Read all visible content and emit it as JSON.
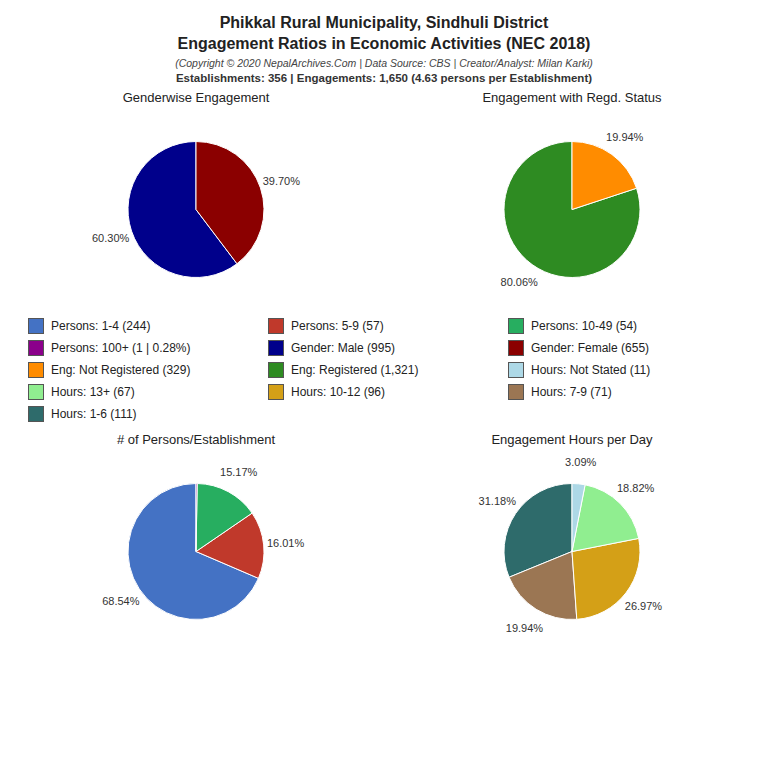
{
  "title": [
    "Phikkal Rural Municipality, Sindhuli District",
    "Engagement Ratios in Economic Activities (NEC 2018)"
  ],
  "subtitle": "(Copyright © 2020 NepalArchives.Com | Data Source: CBS | Creator/Analyst: Milan Karki)",
  "annotations": [
    "Establishments: 356 | Engagements: 1,650 (4.63 persons per Establishment)"
  ],
  "chart_data": [
    {
      "type": "pie",
      "title": "Genderwise Engagement",
      "categories": [
        "Gender: Male (995)",
        "Gender: Female (655)"
      ],
      "values": [
        60.3,
        39.7
      ],
      "value_labels": [
        "60.30%",
        "39.70%"
      ],
      "colors": [
        "#00008B",
        "#8B0000"
      ],
      "data_labels": true
    },
    {
      "type": "pie",
      "title": "Engagement with Regd. Status",
      "categories": [
        "Eng: Registered (1,321)",
        "Eng: Not Registered (329)"
      ],
      "values": [
        80.06,
        19.94
      ],
      "value_labels": [
        "80.06%",
        "19.94%"
      ],
      "colors": [
        "#2E8B22",
        "#FF8C00"
      ],
      "data_labels": true
    },
    {
      "type": "pie",
      "title": "# of Persons/Establishment",
      "categories": [
        "Persons: 1-4 (244)",
        "Persons: 5-9 (57)",
        "Persons: 10-49 (54)",
        "Persons: 100+ (1 | 0.28%)"
      ],
      "values": [
        68.54,
        16.01,
        15.17,
        0.28
      ],
      "value_labels": [
        "68.54%",
        "16.01%",
        "15.17%",
        null
      ],
      "colors": [
        "#4472C4",
        "#C0392B",
        "#27AE60",
        "#8B008B"
      ],
      "data_labels": true
    },
    {
      "type": "pie",
      "title": "Engagement Hours per Day",
      "categories": [
        "Hours: 1-6 (111)",
        "Hours: 7-9 (71)",
        "Hours: 10-12 (96)",
        "Hours: 13+ (67)",
        "Hours: Not Stated (11)"
      ],
      "values": [
        31.18,
        19.94,
        26.97,
        18.82,
        3.09
      ],
      "value_labels": [
        "31.18%",
        "19.94%",
        "26.97%",
        "18.82%",
        "3.09%"
      ],
      "colors": [
        "#2E6B6B",
        "#9B7653",
        "#D4A017",
        "#90EE90",
        "#ADD8E6"
      ],
      "data_labels": true
    }
  ]
}
